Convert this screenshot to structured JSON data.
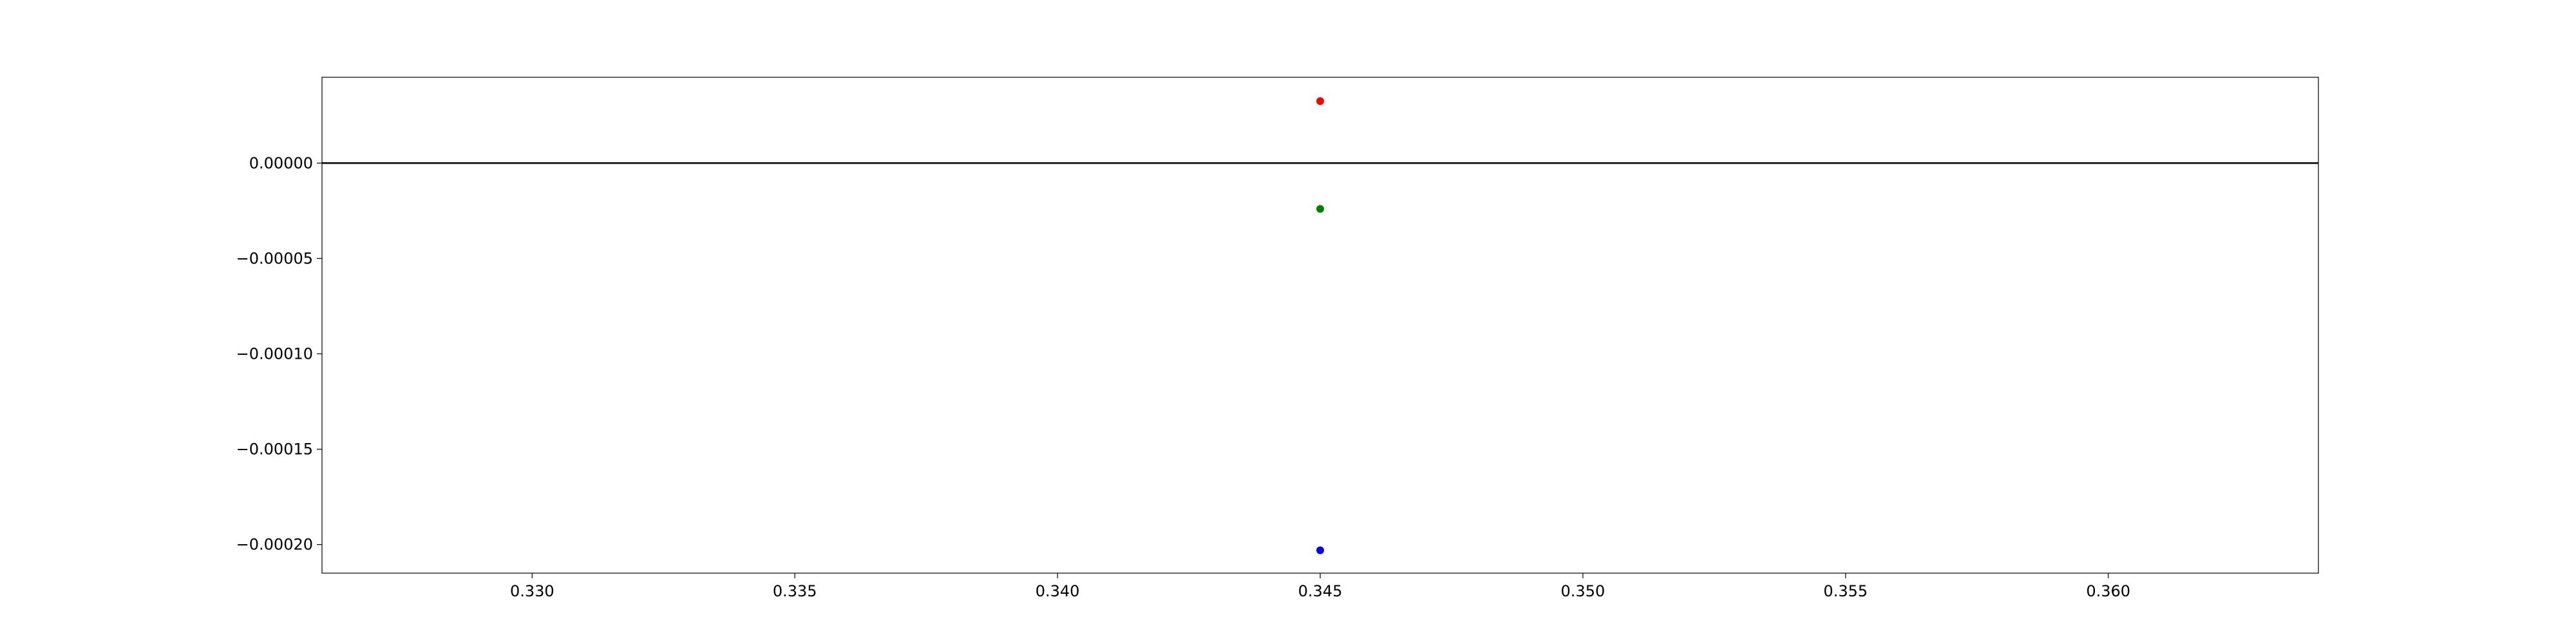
{
  "chart_data": {
    "type": "scatter",
    "title": "",
    "xlabel": "",
    "ylabel": "",
    "xlim": [
      0.326,
      0.364
    ],
    "ylim": [
      -0.000215,
      4.5e-05
    ],
    "grid": false,
    "x_ticks": [
      "0.330",
      "0.335",
      "0.340",
      "0.345",
      "0.350",
      "0.355",
      "0.360"
    ],
    "x_tick_values": [
      0.33,
      0.335,
      0.34,
      0.345,
      0.35,
      0.355,
      0.36
    ],
    "y_ticks": [
      "0.00000",
      "−0.00005",
      "−0.00010",
      "−0.00015",
      "−0.00020"
    ],
    "y_tick_values": [
      0.0,
      -5e-05,
      -0.0001,
      -0.00015,
      -0.0002
    ],
    "reference_line": {
      "y": 0.0,
      "color": "#000000"
    },
    "points": [
      {
        "x": 0.345,
        "y": 3.25e-05,
        "color": "#ff0000"
      },
      {
        "x": 0.345,
        "y": -2.4e-05,
        "color": "#008000"
      },
      {
        "x": 0.345,
        "y": -0.000203,
        "color": "#0000ff"
      }
    ]
  }
}
